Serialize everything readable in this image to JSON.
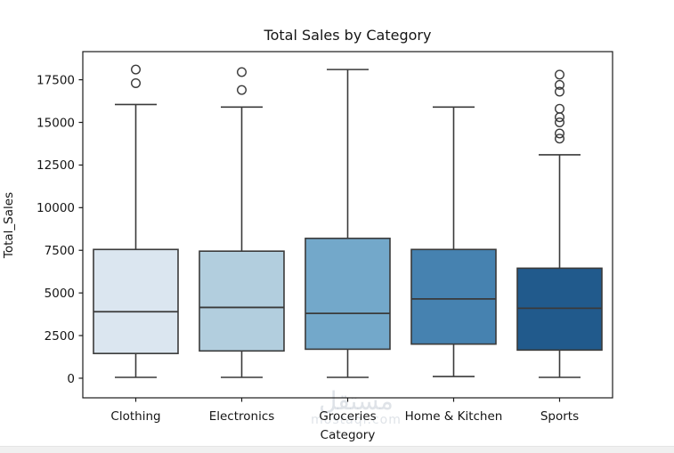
{
  "chart_data": {
    "type": "box",
    "title": "Total Sales by Category",
    "xlabel": "Category",
    "ylabel": "Total_Sales",
    "categories": [
      "Clothing",
      "Electronics",
      "Groceries",
      "Home & Kitchen",
      "Sports"
    ],
    "ylim": [
      -1150,
      19150
    ],
    "yticks": [
      0,
      2500,
      5000,
      7500,
      10000,
      12500,
      15000,
      17500
    ],
    "grid": false,
    "legend": false,
    "box_line_color": "#3a3a3a",
    "frame_color": "#1a1a1a",
    "series": [
      {
        "category": "Clothing",
        "whisker_low": 50,
        "q1": 1450,
        "median": 3900,
        "q3": 7550,
        "whisker_high": 16050,
        "outliers": [
          18100,
          17300
        ],
        "color": "#dbe6f0"
      },
      {
        "category": "Electronics",
        "whisker_low": 50,
        "q1": 1600,
        "median": 4150,
        "q3": 7450,
        "whisker_high": 15900,
        "outliers": [
          17950,
          16900
        ],
        "color": "#b2cede"
      },
      {
        "category": "Groceries",
        "whisker_low": 50,
        "q1": 1700,
        "median": 3800,
        "q3": 8200,
        "whisker_high": 18100,
        "outliers": [],
        "color": "#73a8ca"
      },
      {
        "category": "Home & Kitchen",
        "whisker_low": 100,
        "q1": 2000,
        "median": 4650,
        "q3": 7550,
        "whisker_high": 15900,
        "outliers": [],
        "color": "#4682b0"
      },
      {
        "category": "Sports",
        "whisker_low": 50,
        "q1": 1650,
        "median": 4100,
        "q3": 6450,
        "whisker_high": 13100,
        "outliers": [
          17800,
          17200,
          16800,
          15800,
          15300,
          15000,
          14350,
          14050
        ],
        "color": "#215a8c"
      }
    ]
  },
  "watermark": {
    "line1": "مستقل",
    "line2": "mostaql.com"
  }
}
